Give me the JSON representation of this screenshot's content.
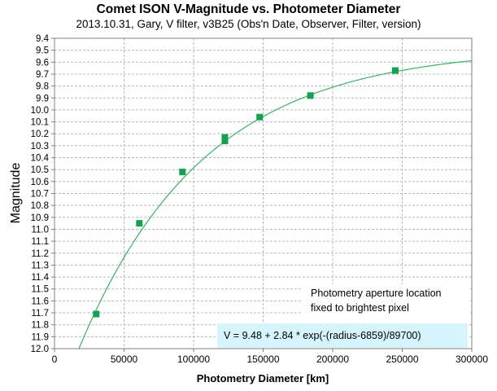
{
  "chart_data": {
    "type": "scatter",
    "title": "Comet ISON V-Magnitude vs. Photometer Diameter",
    "subtitle": "2013.10.31,  Gary, V filter, v3B25 (Obs'n Date, Observer, Filter, version)",
    "xlabel": "Photometry Diameter  [km]",
    "ylabel": "Magnitude",
    "xlim": [
      0,
      300000
    ],
    "ylim": [
      9.4,
      12.0
    ],
    "y_inverted": true,
    "grid": true,
    "x_ticks": [
      0,
      50000,
      100000,
      150000,
      200000,
      250000,
      300000
    ],
    "x_tick_labels": [
      "0",
      "50000",
      "100000",
      "150000",
      "200000",
      "250000",
      "300000"
    ],
    "y_ticks": [
      9.4,
      9.5,
      9.6,
      9.7,
      9.8,
      9.9,
      10.0,
      10.1,
      10.2,
      10.3,
      10.4,
      10.5,
      10.6,
      10.7,
      10.8,
      10.9,
      11.0,
      11.1,
      11.2,
      11.3,
      11.4,
      11.5,
      11.6,
      11.7,
      11.8,
      11.9,
      12.0
    ],
    "y_tick_labels": [
      "9.4",
      "9.5",
      "9.6",
      "9.7",
      "9.8",
      "9.9",
      "10.0",
      "10.1",
      "10.2",
      "10.3",
      "10.4",
      "10.5",
      "10.6",
      "10.7",
      "10.8",
      "10.9",
      "11.0",
      "11.1",
      "11.2",
      "11.3",
      "11.4",
      "11.5",
      "11.6",
      "11.7",
      "11.8",
      "11.9",
      "12.0"
    ],
    "points": [
      {
        "x": 30000,
        "y": 11.71
      },
      {
        "x": 61000,
        "y": 10.95
      },
      {
        "x": 92000,
        "y": 10.52
      },
      {
        "x": 122500,
        "y": 10.23
      },
      {
        "x": 122500,
        "y": 10.26
      },
      {
        "x": 147500,
        "y": 10.06
      },
      {
        "x": 184000,
        "y": 9.88
      },
      {
        "x": 245000,
        "y": 9.67
      }
    ],
    "fit": {
      "base": 9.48,
      "amplitude": 2.84,
      "offset": 6859,
      "scale": 89700
    },
    "annotations": {
      "note_line1": "Photometry aperture location",
      "note_line2": "fixed to brightest pixel",
      "formula": "V = 9.48 + 2.84 * exp(-(radius-6859)/89700)"
    },
    "colors": {
      "marker": "#14a151",
      "fit_line": "#3cb068",
      "grid": "#b8b8b8",
      "axis": "#808080",
      "formula_bg": "#d6f4fb"
    }
  }
}
